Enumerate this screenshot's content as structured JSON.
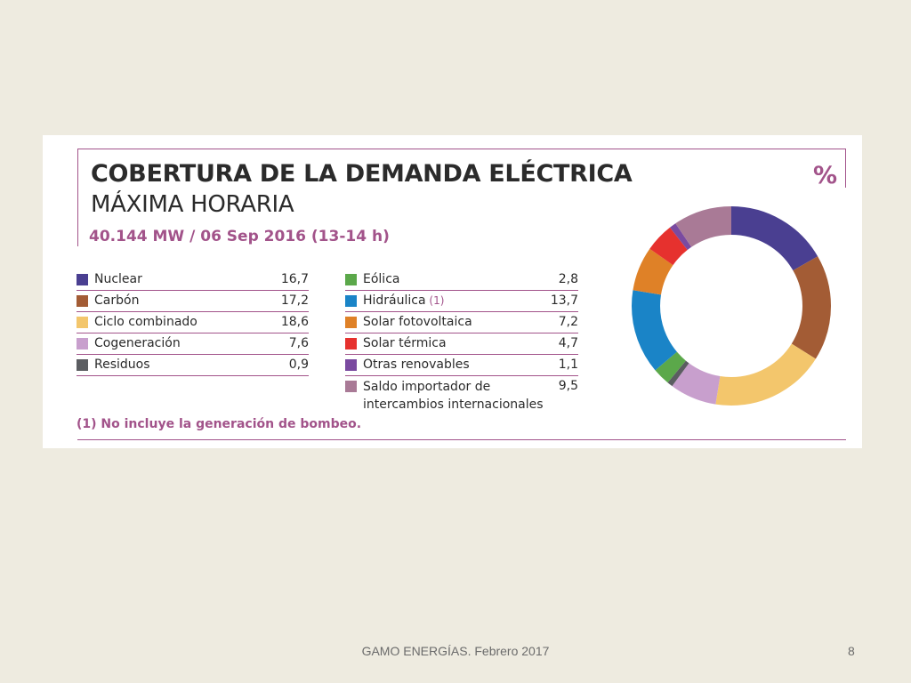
{
  "slide": {
    "footer": "GAMO ENERGÍAS. Febrero 2017",
    "page_number": "8"
  },
  "chart_data": {
    "type": "pie",
    "title": "COBERTURA DE LA DEMANDA ELÉCTRICA",
    "subtitle": "MÁXIMA HORARIA",
    "headline": "40.144 MW / 06 Sep 2016 (13-14 h)",
    "unit": "%",
    "note_marker": "(1)",
    "footnote": "(1) No incluye la generación de bombeo.",
    "slices": [
      {
        "label": "Nuclear",
        "value": 16.7,
        "display": "16,7",
        "color": "#4a3f91",
        "note": false
      },
      {
        "label": "Carbón",
        "value": 17.2,
        "display": "17,2",
        "color": "#a35c35",
        "note": false
      },
      {
        "label": "Ciclo combinado",
        "value": 18.6,
        "display": "18,6",
        "color": "#f3c66c",
        "note": false
      },
      {
        "label": "Cogeneración",
        "value": 7.6,
        "display": "7,6",
        "color": "#c89fcd",
        "note": false
      },
      {
        "label": "Residuos",
        "value": 0.9,
        "display": "0,9",
        "color": "#5b5d61",
        "note": false
      },
      {
        "label": "Eólica",
        "value": 2.8,
        "display": "2,8",
        "color": "#5ba84a",
        "note": false
      },
      {
        "label": "Hidráulica",
        "value": 13.7,
        "display": "13,7",
        "color": "#1a84c7",
        "note": true
      },
      {
        "label": "Solar fotovoltaica",
        "value": 7.2,
        "display": "7,2",
        "color": "#df8127",
        "note": false
      },
      {
        "label": "Solar térmica",
        "value": 4.7,
        "display": "4,7",
        "color": "#e6312e",
        "note": false
      },
      {
        "label": "Otras renovables",
        "value": 1.1,
        "display": "1,1",
        "color": "#7a4aa0",
        "note": false
      },
      {
        "label": "Saldo importador de intercambios internacionales",
        "value": 9.5,
        "display": "9,5",
        "color": "#a97a96",
        "note": false
      }
    ]
  }
}
